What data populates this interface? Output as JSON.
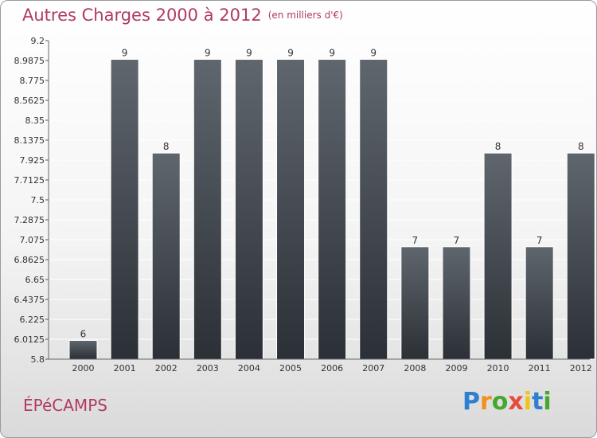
{
  "header": {
    "title": "Autres Charges 2000 à 2012",
    "subtitle": "(en milliers d'€)"
  },
  "footer": {
    "commune": "ÉPéCAMPS",
    "brand": "Proxiti"
  },
  "colors": {
    "title": "#b03a64",
    "bar_top": "#5f666d",
    "bar_bottom": "#2b3036",
    "grid": "#ffffff"
  },
  "chart_data": {
    "type": "bar",
    "title": "Autres Charges 2000 à 2012",
    "subtitle": "(en milliers d'€)",
    "categories": [
      "2000",
      "2001",
      "2002",
      "2003",
      "2004",
      "2005",
      "2006",
      "2007",
      "2008",
      "2009",
      "2010",
      "2011",
      "2012"
    ],
    "values": [
      6,
      9,
      8,
      9,
      9,
      9,
      9,
      9,
      7,
      7,
      8,
      7,
      8
    ],
    "value_labels": [
      "6",
      "9",
      "8",
      "9",
      "9",
      "9",
      "9",
      "9",
      "7",
      "7",
      "8",
      "7",
      "8"
    ],
    "ylim": [
      5.8,
      9.2
    ],
    "yticks": [
      5.8,
      6.0125,
      6.225,
      6.4375,
      6.65,
      6.8625,
      7.075,
      7.2875,
      7.5,
      7.7125,
      7.925,
      8.1375,
      8.35,
      8.5625,
      8.775,
      8.9875,
      9.2
    ],
    "ytick_labels": [
      "5.8",
      "6.0125",
      "6.225",
      "6.4375",
      "6.65",
      "6.8625",
      "7.075",
      "7.2875",
      "7.5",
      "7.7125",
      "7.925",
      "8.1375",
      "8.35",
      "8.5625",
      "8.775",
      "8.9875",
      "9.2"
    ],
    "grid": true,
    "xlabel": "",
    "ylabel": ""
  }
}
